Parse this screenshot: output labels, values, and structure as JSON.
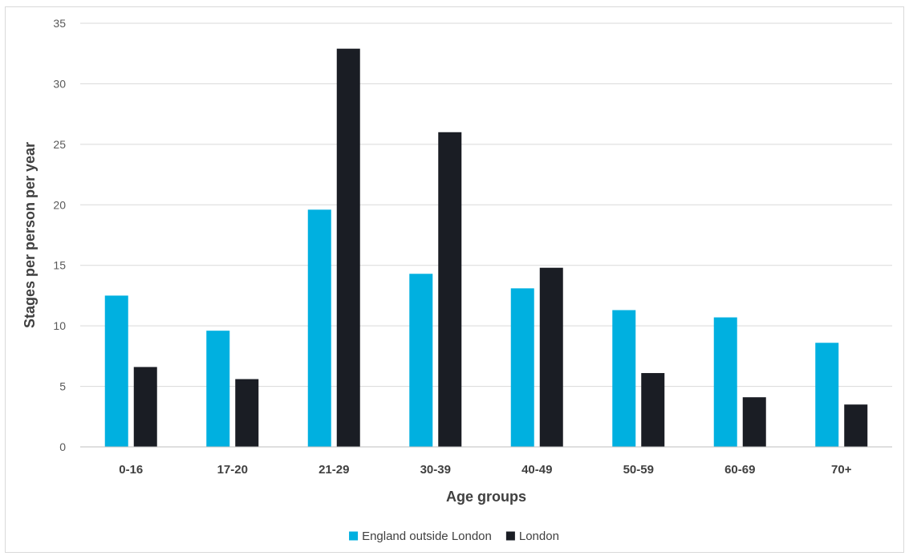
{
  "chart_data": {
    "type": "bar",
    "title": "",
    "xlabel": "Age groups",
    "ylabel": "Stages per person per year",
    "ylim": [
      0,
      35
    ],
    "yticks": [
      0,
      5,
      10,
      15,
      20,
      25,
      30,
      35
    ],
    "grid": true,
    "legend_position": "bottom",
    "categories": [
      "0-16",
      "17-20",
      "21-29",
      "30-39",
      "40-49",
      "50-59",
      "60-69",
      "70+"
    ],
    "series": [
      {
        "name": "England outside London",
        "color": "#00b0e0",
        "values": [
          12.5,
          9.6,
          19.6,
          14.3,
          13.1,
          11.3,
          10.7,
          8.6
        ]
      },
      {
        "name": "London",
        "color": "#1a1d24",
        "values": [
          6.6,
          5.6,
          32.9,
          26.0,
          14.8,
          6.1,
          4.1,
          3.5
        ]
      }
    ]
  }
}
